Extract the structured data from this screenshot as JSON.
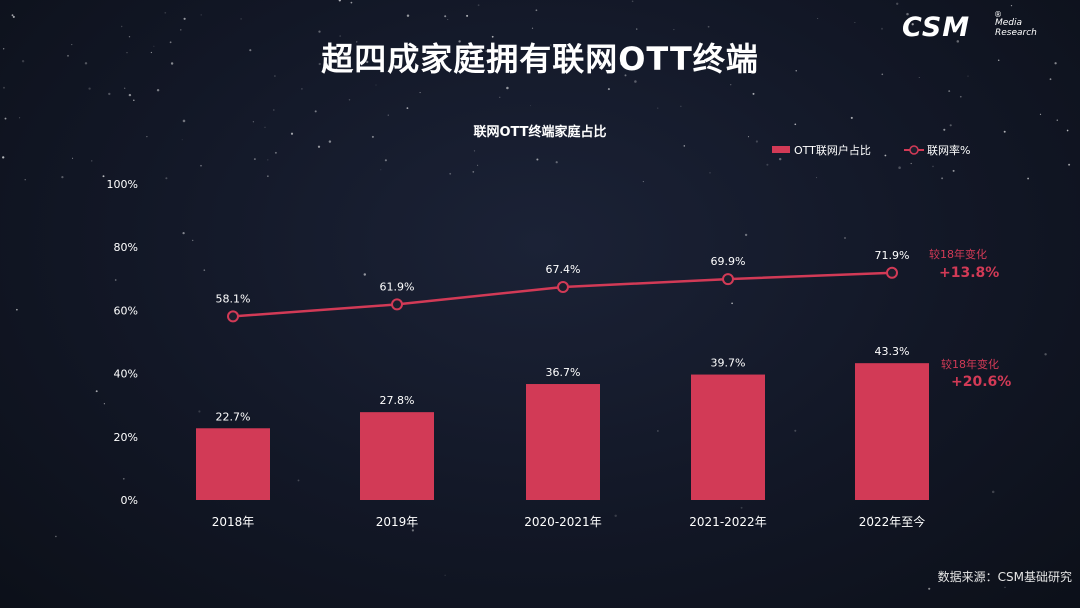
{
  "page": {
    "title": "超四成家庭拥有联网OTT终端",
    "source": "数据来源：CSM基础研究",
    "logo": {
      "main": "CSM",
      "sub_line1": "Media",
      "sub_line2": "Research",
      "reg": "®"
    }
  },
  "colors": {
    "bar": "#d23a56",
    "line": "#d23a56",
    "marker_fill": "#1a1f2e",
    "axis_text": "#ffffff",
    "change_label": "#d23a56"
  },
  "chart_data": {
    "type": "bar",
    "title": "联网OTT终端家庭占比",
    "categories": [
      "2018年",
      "2019年",
      "2020-2021年",
      "2021-2022年",
      "2022年至今"
    ],
    "series": [
      {
        "name": "OTT联网户占比",
        "type": "bar",
        "values": [
          22.7,
          27.8,
          36.7,
          39.7,
          43.3
        ],
        "labels": [
          "22.7%",
          "27.8%",
          "36.7%",
          "39.7%",
          "43.3%"
        ]
      },
      {
        "name": "联网率%",
        "type": "line",
        "values": [
          58.1,
          61.9,
          67.4,
          69.9,
          71.9
        ],
        "labels": [
          "58.1%",
          "61.9%",
          "67.4%",
          "69.9%",
          "71.9%"
        ]
      }
    ],
    "ylim": [
      0,
      100
    ],
    "yticks": [
      "0%",
      "20%",
      "40%",
      "60%",
      "80%",
      "100%"
    ],
    "legend_position": "top-right",
    "grid": false,
    "annotations": [
      {
        "series": "联网率%",
        "label": "较18年变化",
        "value": "+13.8%"
      },
      {
        "series": "OTT联网户占比",
        "label": "较18年变化",
        "value": "+20.6%"
      }
    ]
  }
}
